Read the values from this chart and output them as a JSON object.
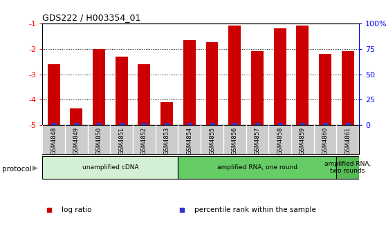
{
  "title": "GDS222 / H003354_01",
  "samples": [
    "GSM4848",
    "GSM4849",
    "GSM4850",
    "GSM4851",
    "GSM4852",
    "GSM4853",
    "GSM4854",
    "GSM4855",
    "GSM4856",
    "GSM4857",
    "GSM4858",
    "GSM4859",
    "GSM4860",
    "GSM4861"
  ],
  "log_ratio": [
    -2.6,
    -4.35,
    -2.0,
    -2.3,
    -2.6,
    -4.1,
    -1.65,
    -1.75,
    -1.1,
    -2.1,
    -1.2,
    -1.1,
    -2.2,
    -2.1
  ],
  "ylim_left": [
    -5,
    -1
  ],
  "ylim_right": [
    0,
    100
  ],
  "bar_color": "#cc0000",
  "dot_color": "#3333cc",
  "plot_bg": "#ffffff",
  "tick_bg": "#cccccc",
  "protocol_groups": [
    {
      "label": "unamplified cDNA",
      "start": 0,
      "end": 5,
      "color": "#d4f0d4"
    },
    {
      "label": "amplified RNA, one round",
      "start": 6,
      "end": 12,
      "color": "#66cc66"
    },
    {
      "label": "amplified RNA,\ntwo rounds",
      "start": 13,
      "end": 13,
      "color": "#55bb55"
    }
  ],
  "legend_items": [
    {
      "color": "#cc0000",
      "label": "log ratio"
    },
    {
      "color": "#3333cc",
      "label": "percentile rank within the sample"
    }
  ],
  "left_yticks": [
    -5,
    -4,
    -3,
    -2,
    -1
  ],
  "right_yticks": [
    0,
    25,
    50,
    75,
    100
  ],
  "left_yticklabels": [
    "-5",
    "-4",
    "-3",
    "-2",
    "-1"
  ],
  "right_yticklabels": [
    "0",
    "25",
    "50",
    "75",
    "100%"
  ],
  "protocol_label": "protocol"
}
